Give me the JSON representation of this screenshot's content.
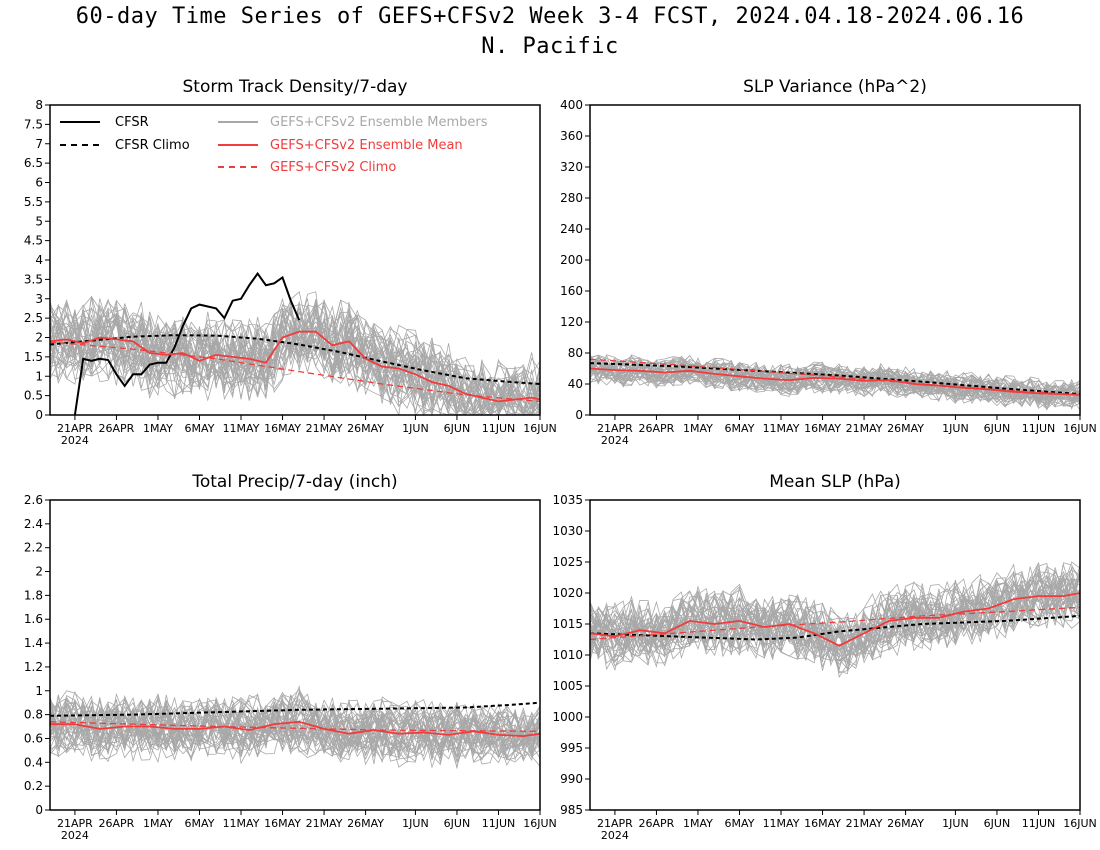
{
  "page": {
    "title_line1": "60-day Time Series of GEFS+CFSv2 Week 3-4 FCST, 2024.04.18-2024.06.16",
    "title_line2": "N. Pacific"
  },
  "colors": {
    "cfsr": "#000000",
    "ensemble_members": "#a8a8a8",
    "ensemble_mean": "#f03c3c",
    "frame": "#000000"
  },
  "x_axis": {
    "tick_labels": [
      "21APR",
      "26APR",
      "1MAY",
      "6MAY",
      "11MAY",
      "16MAY",
      "21MAY",
      "26MAY",
      "1JUN",
      "6JUN",
      "11JUN",
      "16JUN"
    ],
    "tick_days": [
      3,
      8,
      13,
      18,
      23,
      28,
      33,
      38,
      44,
      49,
      54,
      59
    ],
    "year_label": "2024",
    "day_range": [
      0,
      59
    ]
  },
  "legend": {
    "cfsr": "CFSR",
    "cfsr_climo": "CFSR Climo",
    "members": "GEFS+CFSv2 Ensemble Members",
    "mean": "GEFS+CFSv2 Ensemble Mean",
    "model_climo": "GEFS+CFSv2 Climo"
  },
  "chart_data": [
    {
      "type": "line",
      "title": "Storm Track Density/7-day",
      "ylim": [
        0,
        8
      ],
      "y_ticks": [
        "0",
        "0.5",
        "1",
        "1.5",
        "2",
        "2.5",
        "3",
        "3.5",
        "4",
        "4.5",
        "5",
        "5.5",
        "6",
        "6.5",
        "7",
        "7.5",
        "8"
      ],
      "series": [
        {
          "name": "CFSR",
          "days": [
            3,
            4,
            5,
            6,
            7,
            8,
            9,
            10,
            11,
            12,
            13,
            14,
            15,
            16,
            17,
            18,
            19,
            20,
            21,
            22,
            23,
            24,
            25,
            26,
            27,
            28,
            29,
            30,
            31,
            32,
            33
          ],
          "values": [
            0,
            1.45,
            1.4,
            1.45,
            1.42,
            1.05,
            0.75,
            1.05,
            1.05,
            1.3,
            1.35,
            1.35,
            1.75,
            2.3,
            2.75,
            2.85,
            2.8,
            2.75,
            2.5,
            2.95,
            3.0,
            3.35,
            3.65,
            3.35,
            3.4,
            3.55,
            2.95,
            2.45,
            null,
            null,
            null
          ]
        },
        {
          "name": "CFSR Climo",
          "days": [
            0,
            5,
            10,
            15,
            20,
            25,
            30,
            35,
            40,
            45,
            50,
            55,
            59
          ],
          "values": [
            1.82,
            1.92,
            2.02,
            2.06,
            2.05,
            1.97,
            1.82,
            1.62,
            1.38,
            1.15,
            0.95,
            0.86,
            0.8
          ]
        },
        {
          "name": "GEFS+CFSv2 Ensemble Mean",
          "days": [
            0,
            2,
            4,
            6,
            8,
            10,
            12,
            14,
            16,
            18,
            20,
            22,
            24,
            26,
            28,
            30,
            32,
            34,
            36,
            38,
            40,
            42,
            44,
            46,
            48,
            50,
            52,
            54,
            56,
            58,
            59
          ],
          "values": [
            1.9,
            1.95,
            1.85,
            2.0,
            1.95,
            1.9,
            1.6,
            1.55,
            1.6,
            1.4,
            1.55,
            1.5,
            1.45,
            1.35,
            2.0,
            2.15,
            2.15,
            1.8,
            1.9,
            1.45,
            1.25,
            1.2,
            1.05,
            0.85,
            0.75,
            0.55,
            0.45,
            0.35,
            0.4,
            0.45,
            0.4
          ]
        },
        {
          "name": "GEFS+CFSv2 Climo",
          "days": [
            0,
            10,
            20,
            30,
            40,
            50,
            59
          ],
          "values": [
            1.88,
            1.7,
            1.45,
            1.12,
            0.8,
            0.52,
            0.35
          ]
        }
      ],
      "member_spread": {
        "center_from": "GEFS+CFSv2 Ensemble Mean",
        "spread": 1.2,
        "count": 40
      }
    },
    {
      "type": "line",
      "title": "SLP Variance (hPa^2)",
      "ylim": [
        0,
        400
      ],
      "y_ticks": [
        "0",
        "40",
        "80",
        "120",
        "160",
        "200",
        "240",
        "280",
        "320",
        "360",
        "400"
      ],
      "series": [
        {
          "name": "CFSR Climo",
          "days": [
            0,
            10,
            20,
            30,
            40,
            50,
            59
          ],
          "values": [
            67,
            63,
            57,
            51,
            43,
            34,
            27
          ]
        },
        {
          "name": "GEFS+CFSv2 Ensemble Mean",
          "days": [
            0,
            3,
            6,
            9,
            12,
            15,
            18,
            21,
            24,
            27,
            30,
            33,
            36,
            39,
            42,
            45,
            48,
            51,
            54,
            57,
            59
          ],
          "values": [
            60,
            58,
            57,
            55,
            57,
            53,
            50,
            47,
            45,
            48,
            47,
            44,
            45,
            40,
            38,
            35,
            33,
            30,
            28,
            27,
            26
          ]
        },
        {
          "name": "GEFS+CFSv2 Climo",
          "days": [
            0,
            10,
            20,
            30,
            40,
            50,
            59
          ],
          "values": [
            72,
            65,
            57,
            49,
            40,
            32,
            26
          ]
        }
      ],
      "member_spread": {
        "center_from": "GEFS+CFSv2 Ensemble Mean",
        "spread": 22,
        "count": 40
      }
    },
    {
      "type": "line",
      "title": "Total Precip/7-day (inch)",
      "ylim": [
        0,
        2.6
      ],
      "y_ticks": [
        "0",
        "0.2",
        "0.4",
        "0.6",
        "0.8",
        "1",
        "1.2",
        "1.4",
        "1.6",
        "1.8",
        "2",
        "2.2",
        "2.4",
        "2.6"
      ],
      "series": [
        {
          "name": "CFSR Climo",
          "days": [
            0,
            10,
            20,
            30,
            40,
            50,
            55,
            59
          ],
          "values": [
            0.79,
            0.8,
            0.82,
            0.84,
            0.85,
            0.86,
            0.88,
            0.9
          ]
        },
        {
          "name": "GEFS+CFSv2 Ensemble Mean",
          "days": [
            0,
            3,
            6,
            9,
            12,
            15,
            18,
            21,
            24,
            27,
            30,
            33,
            36,
            39,
            42,
            45,
            48,
            51,
            54,
            57,
            59
          ],
          "values": [
            0.72,
            0.72,
            0.68,
            0.7,
            0.7,
            0.68,
            0.68,
            0.7,
            0.67,
            0.72,
            0.74,
            0.68,
            0.64,
            0.67,
            0.64,
            0.65,
            0.63,
            0.66,
            0.63,
            0.62,
            0.64
          ]
        },
        {
          "name": "GEFS+CFSv2 Climo",
          "days": [
            0,
            20,
            40,
            59
          ],
          "values": [
            0.74,
            0.7,
            0.67,
            0.66
          ]
        }
      ],
      "member_spread": {
        "center_from": "GEFS+CFSv2 Ensemble Mean",
        "spread": 0.3,
        "count": 40
      }
    },
    {
      "type": "line",
      "title": "Mean SLP (hPa)",
      "ylim": [
        985,
        1035
      ],
      "y_ticks": [
        "985",
        "990",
        "995",
        "1000",
        "1005",
        "1010",
        "1015",
        "1020",
        "1025",
        "1030",
        "1035"
      ],
      "series": [
        {
          "name": "CFSR Climo",
          "days": [
            0,
            10,
            20,
            25,
            30,
            40,
            50,
            59
          ],
          "values": [
            1013.5,
            1013.0,
            1012.5,
            1012.8,
            1013.8,
            1015.0,
            1015.5,
            1016.3
          ]
        },
        {
          "name": "GEFS+CFSv2 Ensemble Mean",
          "days": [
            0,
            3,
            6,
            9,
            12,
            15,
            18,
            21,
            24,
            27,
            30,
            33,
            36,
            39,
            42,
            45,
            48,
            51,
            54,
            57,
            59
          ],
          "values": [
            1013.5,
            1013.0,
            1014.0,
            1013.5,
            1015.5,
            1015.0,
            1015.5,
            1014.5,
            1015.0,
            1013.5,
            1011.5,
            1013.5,
            1015.5,
            1016.0,
            1016.0,
            1017.0,
            1017.5,
            1019.0,
            1019.5,
            1019.5,
            1020.0
          ]
        },
        {
          "name": "GEFS+CFSv2 Climo",
          "days": [
            0,
            10,
            20,
            30,
            40,
            50,
            59
          ],
          "values": [
            1012.5,
            1013.5,
            1014.5,
            1015.3,
            1016.3,
            1017.0,
            1017.7
          ]
        }
      ],
      "member_spread": {
        "center_from": "GEFS+CFSv2 Ensemble Mean",
        "spread": 6,
        "count": 40
      }
    }
  ]
}
